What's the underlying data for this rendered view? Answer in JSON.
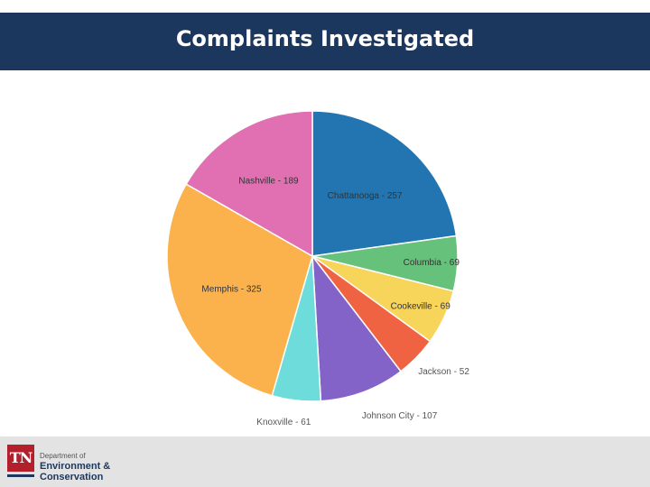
{
  "header": {
    "title": "Complaints Investigated"
  },
  "chart_data": {
    "type": "pie",
    "title": "",
    "categories": [
      "Chattanooga",
      "Columbia",
      "Cookeville",
      "Jackson",
      "Johnson City",
      "Knoxville",
      "Memphis",
      "Nashville"
    ],
    "values": [
      257,
      69,
      69,
      52,
      107,
      61,
      325,
      189
    ],
    "colors": [
      "#2275b1",
      "#66c17a",
      "#f7d45a",
      "#ef6343",
      "#8363c8",
      "#6ddcda",
      "#fbb24c",
      "#e070b2"
    ],
    "labels": [
      "Chattanooga - 257",
      "Columbia - 69",
      "Cookeville - 69",
      "Jackson - 52",
      "Johnson City - 107",
      "Knoxville - 61",
      "Memphis - 325",
      "Nashville - 189"
    ],
    "start_angle": "12 o'clock",
    "direction": "clockwise"
  },
  "footer": {
    "logo_text": "TN",
    "dept_prefix": "Department of",
    "dept_line1": "Environment &",
    "dept_line2": "Conservation"
  },
  "colors": {
    "title_bar": "#1c375e",
    "footer_bg": "#e3e3e3",
    "logo_red": "#b1202b"
  }
}
